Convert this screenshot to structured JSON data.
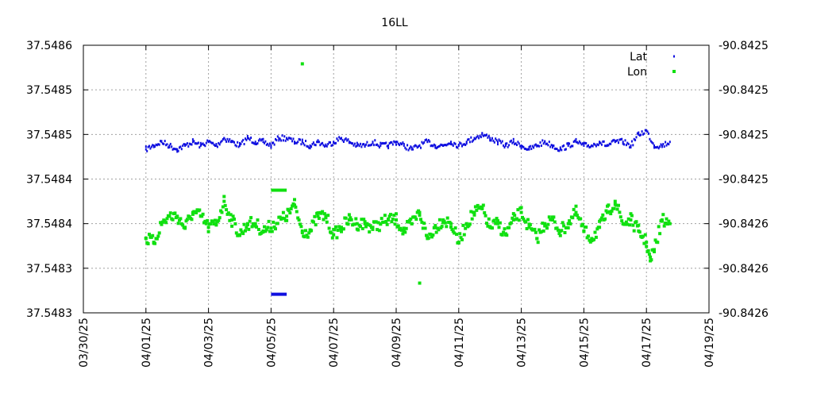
{
  "chart_data": {
    "type": "scatter",
    "title": "16LL",
    "xlabel": "",
    "ylabel": "",
    "y2label": "",
    "grid": true,
    "legend_position": "top-right",
    "x_range": [
      "2025-03-30",
      "2025-04-19"
    ],
    "x_tick_labels": [
      "03/30/25",
      "04/01/25",
      "04/03/25",
      "04/05/25",
      "04/07/25",
      "04/09/25",
      "04/11/25",
      "04/13/25",
      "04/15/25",
      "04/17/25",
      "04/19/25"
    ],
    "y_left_range": [
      37.54826,
      37.54862
    ],
    "y_left_tick_labels": [
      "37.5486",
      "37.5485",
      "37.5485",
      "37.5484",
      "37.5484",
      "37.5483",
      "37.5483"
    ],
    "y_right_tick_labels": [
      "-90.8425",
      "-90.8425",
      "-90.8425",
      "-90.8425",
      "-90.8426",
      "-90.8426",
      "-90.8426"
    ],
    "series": [
      {
        "name": "Lat",
        "color": "#1010e0",
        "marker": "small-square",
        "points": [
          [
            "2025-04-01 00:00",
            37.54848
          ],
          [
            "2025-04-01 06:00",
            37.548485
          ],
          [
            "2025-04-01 12:00",
            37.54849
          ],
          [
            "2025-04-01 18:00",
            37.548485
          ],
          [
            "2025-04-02 00:00",
            37.54848
          ],
          [
            "2025-04-02 06:00",
            37.548485
          ],
          [
            "2025-04-02 12:00",
            37.54849
          ],
          [
            "2025-04-02 18:00",
            37.548485
          ],
          [
            "2025-04-03 00:00",
            37.54849
          ],
          [
            "2025-04-03 06:00",
            37.548485
          ],
          [
            "2025-04-03 12:00",
            37.548495
          ],
          [
            "2025-04-03 18:00",
            37.54849
          ],
          [
            "2025-04-04 00:00",
            37.548485
          ],
          [
            "2025-04-04 06:00",
            37.548495
          ],
          [
            "2025-04-04 12:00",
            37.54849
          ],
          [
            "2025-04-04 18:00",
            37.54849
          ],
          [
            "2025-04-05 00:00",
            37.548485
          ],
          [
            "2025-04-05 06:00",
            37.548495
          ],
          [
            "2025-04-05 12:00",
            37.548495
          ],
          [
            "2025-04-05 18:00",
            37.54849
          ],
          [
            "2025-04-06 00:00",
            37.54849
          ],
          [
            "2025-04-06 06:00",
            37.548485
          ],
          [
            "2025-04-06 12:00",
            37.54849
          ],
          [
            "2025-04-06 18:00",
            37.548485
          ],
          [
            "2025-04-07 00:00",
            37.54849
          ],
          [
            "2025-04-07 06:00",
            37.548495
          ],
          [
            "2025-04-07 12:00",
            37.54849
          ],
          [
            "2025-04-07 18:00",
            37.548485
          ],
          [
            "2025-04-08 00:00",
            37.548485
          ],
          [
            "2025-04-08 06:00",
            37.54849
          ],
          [
            "2025-04-08 12:00",
            37.548485
          ],
          [
            "2025-04-08 18:00",
            37.548485
          ],
          [
            "2025-04-09 00:00",
            37.54849
          ],
          [
            "2025-04-09 06:00",
            37.548485
          ],
          [
            "2025-04-09 12:00",
            37.54848
          ],
          [
            "2025-04-09 18:00",
            37.548485
          ],
          [
            "2025-04-10 00:00",
            37.54849
          ],
          [
            "2025-04-10 06:00",
            37.548485
          ],
          [
            "2025-04-10 12:00",
            37.548485
          ],
          [
            "2025-04-10 18:00",
            37.54849
          ],
          [
            "2025-04-11 00:00",
            37.548485
          ],
          [
            "2025-04-11 06:00",
            37.54849
          ],
          [
            "2025-04-11 12:00",
            37.548495
          ],
          [
            "2025-04-11 18:00",
            37.5485
          ],
          [
            "2025-04-12 00:00",
            37.548495
          ],
          [
            "2025-04-12 06:00",
            37.54849
          ],
          [
            "2025-04-12 12:00",
            37.548485
          ],
          [
            "2025-04-12 18:00",
            37.54849
          ],
          [
            "2025-04-13 00:00",
            37.548485
          ],
          [
            "2025-04-13 06:00",
            37.54848
          ],
          [
            "2025-04-13 12:00",
            37.548485
          ],
          [
            "2025-04-13 18:00",
            37.54849
          ],
          [
            "2025-04-14 00:00",
            37.548485
          ],
          [
            "2025-04-14 06:00",
            37.54848
          ],
          [
            "2025-04-14 12:00",
            37.548485
          ],
          [
            "2025-04-14 18:00",
            37.54849
          ],
          [
            "2025-04-15 00:00",
            37.548485
          ],
          [
            "2025-04-15 06:00",
            37.548485
          ],
          [
            "2025-04-15 12:00",
            37.54849
          ],
          [
            "2025-04-15 18:00",
            37.548485
          ],
          [
            "2025-04-16 00:00",
            37.54849
          ],
          [
            "2025-04-16 06:00",
            37.54849
          ],
          [
            "2025-04-16 12:00",
            37.548485
          ],
          [
            "2025-04-16 18:00",
            37.5485
          ],
          [
            "2025-04-17 00:00",
            37.548505
          ],
          [
            "2025-04-17 06:00",
            37.548485
          ],
          [
            "2025-04-17 12:00",
            37.548485
          ],
          [
            "2025-04-17 18:00",
            37.54849
          ]
        ]
      },
      {
        "name": "Lon",
        "color": "#10e010",
        "marker": "small-square",
        "points": [
          [
            "2025-04-01 00:00",
            37.54836
          ],
          [
            "2025-04-01 06:00",
            37.548355
          ],
          [
            "2025-04-01 12:00",
            37.54838
          ],
          [
            "2025-04-01 18:00",
            37.54839
          ],
          [
            "2025-04-02 00:00",
            37.54839
          ],
          [
            "2025-04-02 06:00",
            37.548375
          ],
          [
            "2025-04-02 12:00",
            37.548395
          ],
          [
            "2025-04-02 18:00",
            37.54839
          ],
          [
            "2025-04-03 00:00",
            37.548375
          ],
          [
            "2025-04-03 06:00",
            37.54838
          ],
          [
            "2025-04-03 12:00",
            37.54841
          ],
          [
            "2025-04-03 18:00",
            37.548385
          ],
          [
            "2025-04-04 00:00",
            37.548365
          ],
          [
            "2025-04-04 06:00",
            37.54838
          ],
          [
            "2025-04-04 12:00",
            37.54838
          ],
          [
            "2025-04-04 18:00",
            37.54837
          ],
          [
            "2025-04-05 12:00",
            37.54839
          ],
          [
            "2025-04-05 18:00",
            37.548405
          ],
          [
            "2025-04-06 00:00",
            37.54837
          ],
          [
            "2025-04-06 06:00",
            37.54837
          ],
          [
            "2025-04-06 12:00",
            37.54839
          ],
          [
            "2025-04-06 18:00",
            37.54839
          ],
          [
            "2025-04-07 00:00",
            37.548365
          ],
          [
            "2025-04-07 06:00",
            37.548375
          ],
          [
            "2025-04-07 12:00",
            37.548385
          ],
          [
            "2025-04-07 18:00",
            37.54838
          ],
          [
            "2025-04-08 00:00",
            37.54838
          ],
          [
            "2025-04-08 06:00",
            37.548375
          ],
          [
            "2025-04-08 12:00",
            37.54838
          ],
          [
            "2025-04-08 18:00",
            37.548385
          ],
          [
            "2025-04-09 00:00",
            37.548385
          ],
          [
            "2025-04-09 06:00",
            37.54837
          ],
          [
            "2025-04-09 12:00",
            37.54838
          ],
          [
            "2025-04-09 18:00",
            37.548395
          ],
          [
            "2025-04-10 00:00",
            37.54836
          ],
          [
            "2025-04-10 06:00",
            37.548375
          ],
          [
            "2025-04-10 12:00",
            37.548385
          ],
          [
            "2025-04-10 18:00",
            37.54838
          ],
          [
            "2025-04-11 00:00",
            37.548355
          ],
          [
            "2025-04-11 06:00",
            37.54838
          ],
          [
            "2025-04-11 12:00",
            37.548395
          ],
          [
            "2025-04-11 18:00",
            37.5484
          ],
          [
            "2025-04-12 00:00",
            37.548375
          ],
          [
            "2025-04-12 06:00",
            37.54838
          ],
          [
            "2025-04-12 12:00",
            37.548365
          ],
          [
            "2025-04-12 18:00",
            37.548385
          ],
          [
            "2025-04-13 00:00",
            37.548395
          ],
          [
            "2025-04-13 06:00",
            37.548375
          ],
          [
            "2025-04-13 12:00",
            37.54836
          ],
          [
            "2025-04-13 18:00",
            37.54838
          ],
          [
            "2025-04-14 00:00",
            37.548385
          ],
          [
            "2025-04-14 06:00",
            37.54837
          ],
          [
            "2025-04-14 12:00",
            37.54838
          ],
          [
            "2025-04-14 18:00",
            37.548395
          ],
          [
            "2025-04-15 00:00",
            37.54837
          ],
          [
            "2025-04-15 06:00",
            37.54836
          ],
          [
            "2025-04-15 12:00",
            37.548375
          ],
          [
            "2025-04-15 18:00",
            37.548395
          ],
          [
            "2025-04-16 00:00",
            37.54841
          ],
          [
            "2025-04-16 06:00",
            37.54838
          ],
          [
            "2025-04-16 12:00",
            37.548385
          ],
          [
            "2025-04-16 18:00",
            37.54837
          ],
          [
            "2025-04-17 00:00",
            37.548355
          ],
          [
            "2025-04-17 03:00",
            37.54833
          ],
          [
            "2025-04-17 06:00",
            37.548345
          ],
          [
            "2025-04-17 12:00",
            37.548385
          ],
          [
            "2025-04-17 18:00",
            37.54838
          ]
        ]
      }
    ],
    "annotations_outliers": [
      {
        "series": "Lon",
        "x_start": "2025-04-05 00:00",
        "x_end": "2025-04-05 12:00",
        "y": 37.548285
      },
      {
        "series": "Lon",
        "x_start": "2025-04-05 00:00",
        "x_end": "2025-04-05 12:00",
        "y": 37.548425
      },
      {
        "series": "Lon",
        "x": "2025-04-06 00:00",
        "y": 37.548595
      },
      {
        "series": "Lon",
        "x": "2025-04-09 18:00",
        "y": 37.5483
      }
    ]
  }
}
